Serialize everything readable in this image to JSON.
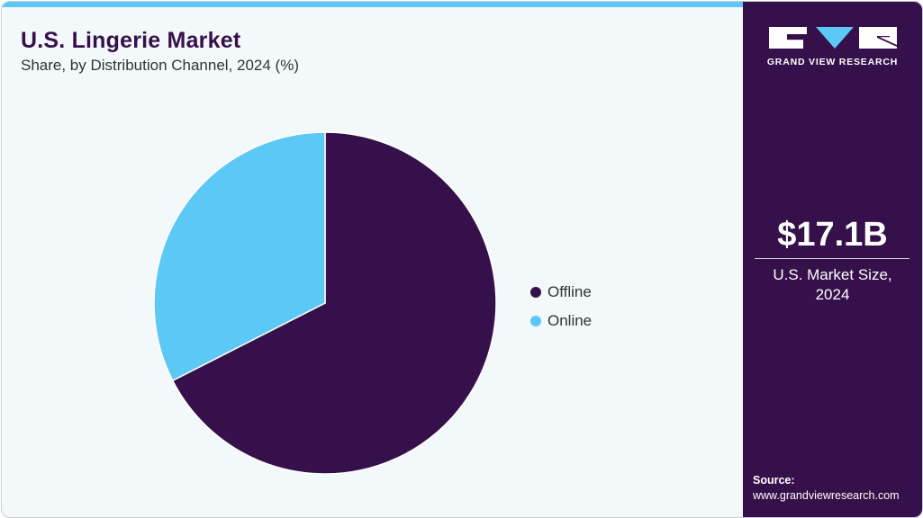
{
  "header": {
    "title": "U.S. Lingerie Market",
    "subtitle": "Share, by Distribution Channel, 2024 (%)"
  },
  "colors": {
    "accent": "#5bc8f5",
    "brand_dark": "#36104a",
    "background": "#f3f8fb"
  },
  "legend": {
    "items": [
      {
        "label": "Offline",
        "color": "#36104a"
      },
      {
        "label": "Online",
        "color": "#5bc8f5"
      }
    ]
  },
  "sidebar": {
    "logo_text": "GRAND VIEW RESEARCH",
    "market_value": "$17.1B",
    "market_label_line1": "U.S. Market Size,",
    "market_label_line2": "2024",
    "source_label": "Source:",
    "source_url": "www.grandviewresearch.com"
  },
  "chart_data": {
    "type": "pie",
    "title": "U.S. Lingerie Market",
    "subtitle": "Share, by Distribution Channel, 2024 (%)",
    "categories": [
      "Offline",
      "Online"
    ],
    "values": [
      67.5,
      32.5
    ],
    "colors": [
      "#36104a",
      "#5bc8f5"
    ],
    "start_angle": "12 o'clock, clockwise",
    "legend_position": "right",
    "data_labels": false
  }
}
